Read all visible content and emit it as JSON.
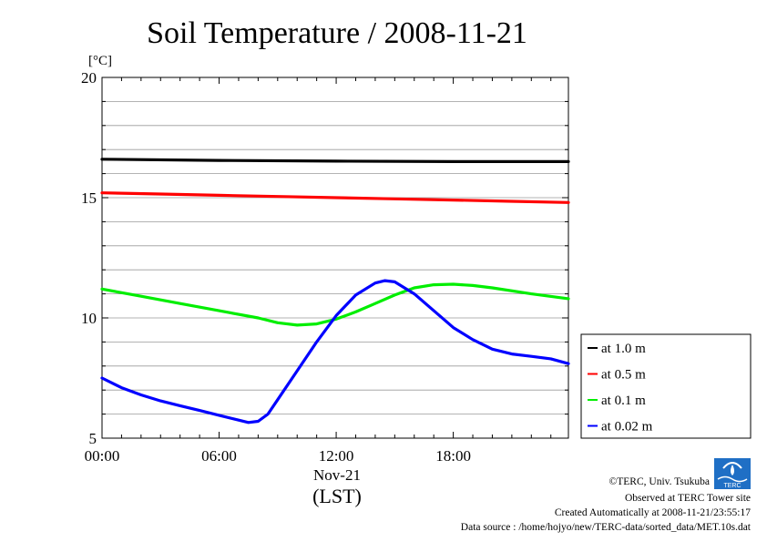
{
  "chart_data": {
    "type": "line",
    "title": "Soil Temperature / 2008-11-21",
    "y_unit": "[°C]",
    "ylim": [
      5,
      20
    ],
    "yticks": [
      5,
      10,
      15,
      20
    ],
    "xlim_hours": [
      0,
      23.9
    ],
    "xticks": [
      {
        "hour": 0,
        "label": "00:00"
      },
      {
        "hour": 6,
        "label": "06:00"
      },
      {
        "hour": 12,
        "label": "12:00"
      },
      {
        "hour": 18,
        "label": "18:00"
      }
    ],
    "x_sublabel": "Nov-21",
    "xlabel": "(LST)",
    "grid": true,
    "legend_position": "right",
    "series": [
      {
        "name": "at 1.0 m",
        "color": "#000000",
        "x": [
          0,
          6,
          12,
          18,
          23.9
        ],
        "values": [
          16.6,
          16.55,
          16.52,
          16.5,
          16.5
        ]
      },
      {
        "name": "at 0.5 m",
        "color": "#ff0000",
        "x": [
          0,
          3,
          6,
          9,
          12,
          15,
          18,
          21,
          23.9
        ],
        "values": [
          15.2,
          15.15,
          15.1,
          15.05,
          15.0,
          14.95,
          14.9,
          14.85,
          14.8
        ]
      },
      {
        "name": "at 0.1 m",
        "color": "#00ee00",
        "x": [
          0,
          2,
          4,
          6,
          8,
          9,
          10,
          11,
          12,
          13,
          14,
          15,
          16,
          17,
          18,
          19,
          20,
          22,
          23.9
        ],
        "values": [
          11.2,
          10.9,
          10.6,
          10.3,
          10.0,
          9.8,
          9.7,
          9.75,
          9.95,
          10.25,
          10.6,
          10.95,
          11.25,
          11.38,
          11.4,
          11.35,
          11.25,
          11.0,
          10.8
        ]
      },
      {
        "name": "at 0.02 m",
        "color": "#0000ff",
        "x": [
          0,
          1,
          2,
          3,
          4,
          5,
          6,
          7,
          7.5,
          8,
          8.5,
          9,
          10,
          11,
          12,
          13,
          14,
          14.5,
          15,
          16,
          17,
          18,
          19,
          20,
          21,
          22,
          23,
          23.9
        ],
        "values": [
          7.5,
          7.1,
          6.8,
          6.55,
          6.35,
          6.15,
          5.95,
          5.75,
          5.65,
          5.7,
          6.0,
          6.6,
          7.8,
          9.0,
          10.1,
          10.95,
          11.45,
          11.55,
          11.5,
          11.0,
          10.3,
          9.6,
          9.1,
          8.7,
          8.5,
          8.4,
          8.3,
          8.1
        ]
      }
    ]
  },
  "logo": {
    "text": "TERC"
  },
  "footer": {
    "copyright": "©TERC, Univ. Tsukuba",
    "site": "Observed at TERC Tower site",
    "created": "Created Automatically at 2008-11-21/23:55:17",
    "source": "Data source : /home/hojyo/new/TERC-data/sorted_data/MET.10s.dat"
  }
}
